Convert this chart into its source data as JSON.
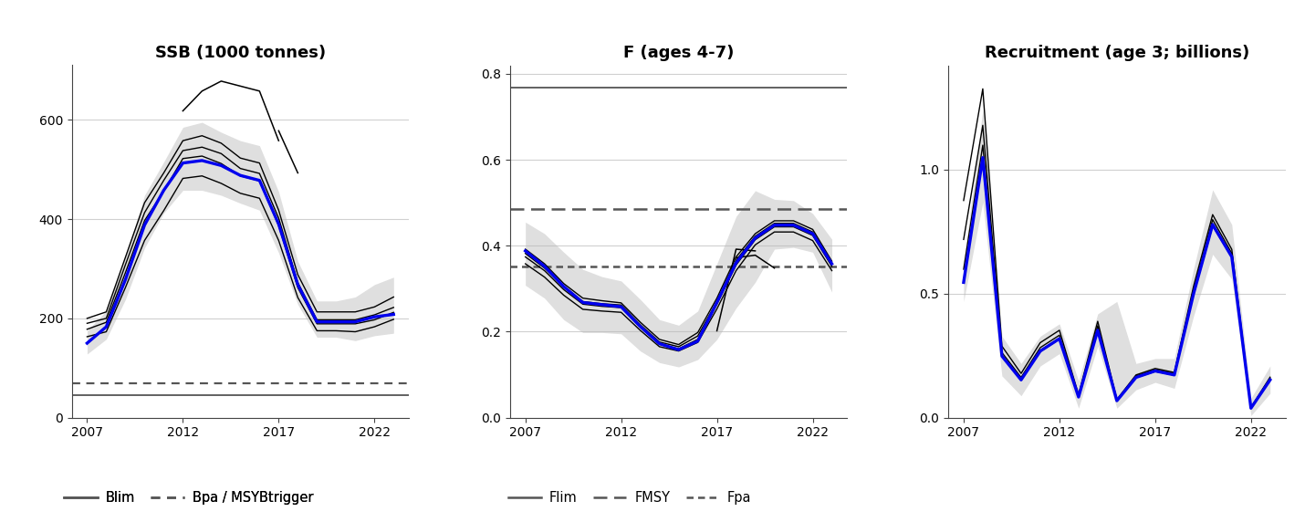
{
  "years": [
    2007,
    2008,
    2009,
    2010,
    2011,
    2012,
    2013,
    2014,
    2015,
    2016,
    2017,
    2018,
    2019,
    2020,
    2021,
    2022,
    2023
  ],
  "ssb_central": [
    150,
    183,
    278,
    388,
    458,
    513,
    518,
    508,
    488,
    478,
    390,
    268,
    193,
    193,
    193,
    203,
    208
  ],
  "ssb_upper": [
    175,
    215,
    325,
    448,
    515,
    585,
    595,
    575,
    558,
    548,
    455,
    315,
    235,
    235,
    243,
    268,
    283
  ],
  "ssb_lower": [
    128,
    158,
    238,
    342,
    412,
    458,
    458,
    448,
    432,
    418,
    332,
    228,
    162,
    162,
    155,
    165,
    170
  ],
  "ssb_lines": [
    [
      200,
      213,
      323,
      433,
      493,
      558,
      568,
      553,
      523,
      513,
      418,
      288,
      213,
      213,
      213,
      223,
      243
    ],
    [
      190,
      200,
      308,
      413,
      478,
      538,
      545,
      532,
      502,
      492,
      402,
      272,
      197,
      197,
      197,
      207,
      222
    ],
    [
      178,
      192,
      292,
      397,
      456,
      522,
      527,
      512,
      487,
      477,
      387,
      262,
      189,
      189,
      189,
      197,
      212
    ],
    [
      163,
      173,
      262,
      357,
      417,
      482,
      487,
      472,
      452,
      442,
      357,
      242,
      175,
      175,
      173,
      183,
      198
    ]
  ],
  "ssb_outlier": [
    null,
    null,
    null,
    null,
    null,
    618,
    658,
    678,
    668,
    658,
    558,
    null,
    null,
    null,
    null,
    null,
    null
  ],
  "ssb_outlier2": [
    null,
    null,
    null,
    null,
    null,
    null,
    null,
    null,
    null,
    null,
    578,
    493,
    null,
    null,
    null,
    null,
    null
  ],
  "ssb_blim": 46,
  "ssb_bpa": 70,
  "ssb_ylim": [
    0,
    710
  ],
  "ssb_yticks": [
    0,
    200,
    400,
    600
  ],
  "f_central": [
    0.388,
    0.352,
    0.305,
    0.268,
    0.263,
    0.258,
    0.212,
    0.172,
    0.158,
    0.178,
    0.268,
    0.36,
    0.418,
    0.448,
    0.448,
    0.428,
    0.358
  ],
  "f_upper": [
    0.455,
    0.428,
    0.385,
    0.345,
    0.328,
    0.318,
    0.275,
    0.228,
    0.215,
    0.248,
    0.358,
    0.468,
    0.528,
    0.508,
    0.505,
    0.475,
    0.415
  ],
  "f_lower": [
    0.308,
    0.278,
    0.228,
    0.198,
    0.198,
    0.195,
    0.155,
    0.128,
    0.118,
    0.135,
    0.182,
    0.255,
    0.315,
    0.392,
    0.396,
    0.385,
    0.292
  ],
  "f_lines": [
    [
      0.392,
      0.358,
      0.312,
      0.278,
      0.272,
      0.267,
      0.222,
      0.182,
      0.17,
      0.198,
      0.278,
      0.374,
      0.428,
      0.458,
      0.458,
      0.438,
      0.364
    ],
    [
      0.382,
      0.348,
      0.305,
      0.27,
      0.265,
      0.262,
      0.216,
      0.176,
      0.165,
      0.19,
      0.27,
      0.366,
      0.422,
      0.452,
      0.452,
      0.432,
      0.358
    ],
    [
      0.374,
      0.342,
      0.298,
      0.264,
      0.259,
      0.256,
      0.211,
      0.171,
      0.16,
      0.182,
      0.264,
      0.355,
      0.414,
      0.444,
      0.444,
      0.424,
      0.352
    ],
    [
      0.358,
      0.327,
      0.285,
      0.252,
      0.248,
      0.245,
      0.203,
      0.165,
      0.155,
      0.175,
      0.253,
      0.342,
      0.402,
      0.432,
      0.432,
      0.412,
      0.342
    ]
  ],
  "f_outlier": [
    null,
    null,
    null,
    null,
    null,
    null,
    null,
    null,
    null,
    null,
    0.202,
    0.392,
    0.388,
    null,
    null,
    null,
    null
  ],
  "f_outlier2": [
    null,
    null,
    null,
    null,
    null,
    null,
    null,
    null,
    null,
    null,
    null,
    0.372,
    0.378,
    0.348,
    null,
    null,
    null
  ],
  "f_flim": 0.768,
  "f_fmsy": 0.485,
  "f_fpa": 0.352,
  "f_ylim": [
    0.0,
    0.82
  ],
  "f_yticks": [
    0.0,
    0.2,
    0.4,
    0.6,
    0.8
  ],
  "rec_central": [
    0.545,
    1.048,
    0.248,
    0.152,
    0.268,
    0.318,
    0.083,
    0.352,
    0.068,
    0.162,
    0.188,
    0.172,
    0.498,
    0.778,
    0.648,
    0.038,
    0.152
  ],
  "rec_upper": [
    0.618,
    1.242,
    0.328,
    0.218,
    0.328,
    0.378,
    0.148,
    0.418,
    0.468,
    0.218,
    0.238,
    0.238,
    0.598,
    0.918,
    0.778,
    0.078,
    0.208
  ],
  "rec_lower": [
    0.468,
    0.868,
    0.168,
    0.088,
    0.208,
    0.258,
    0.038,
    0.288,
    0.038,
    0.112,
    0.142,
    0.118,
    0.408,
    0.658,
    0.558,
    0.008,
    0.098
  ],
  "rec_lines": [
    [
      0.875,
      1.325,
      0.288,
      0.178,
      0.302,
      0.352,
      0.093,
      0.388,
      0.073,
      0.172,
      0.198,
      0.182,
      0.528,
      0.818,
      0.678,
      0.041,
      0.163
    ],
    [
      0.718,
      1.178,
      0.262,
      0.162,
      0.282,
      0.332,
      0.086,
      0.37,
      0.07,
      0.168,
      0.193,
      0.178,
      0.513,
      0.798,
      0.662,
      0.039,
      0.158
    ],
    [
      0.598,
      1.098,
      0.25,
      0.155,
      0.27,
      0.32,
      0.084,
      0.355,
      0.069,
      0.165,
      0.19,
      0.175,
      0.502,
      0.782,
      0.652,
      0.038,
      0.155
    ],
    [
      0.548,
      1.048,
      0.246,
      0.152,
      0.266,
      0.316,
      0.082,
      0.352,
      0.067,
      0.161,
      0.186,
      0.171,
      0.496,
      0.773,
      0.646,
      0.037,
      0.152
    ]
  ],
  "rec_ylim": [
    0.0,
    1.42
  ],
  "rec_yticks": [
    0.0,
    0.5,
    1.0
  ],
  "shade_color": "#b8b8b8",
  "shade_alpha": 0.45,
  "blue_color": "#0000ee",
  "black_line_color": "#000000",
  "ref_line_color": "#555555",
  "grid_color": "#d0d0d0",
  "background_color": "#ffffff",
  "title1": "SSB (1000 tonnes)",
  "title2": "F (ages 4-7)",
  "title3": "Recruitment (age 3; billions)"
}
